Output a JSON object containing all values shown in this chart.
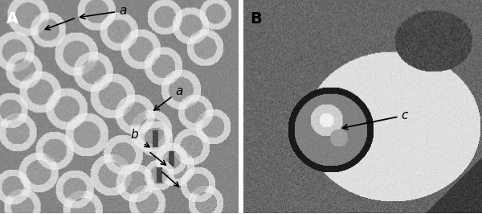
{
  "figsize": [
    6.0,
    2.66
  ],
  "dpi": 100,
  "panel_A_label": "A",
  "panel_B_label": "B",
  "label_a1": "a",
  "label_a2": "a",
  "label_b": "b",
  "label_c": "c",
  "text_color": "#000000",
  "arrow_color": "#000000",
  "panel_label_fontsize": 14,
  "annotation_fontsize": 11
}
